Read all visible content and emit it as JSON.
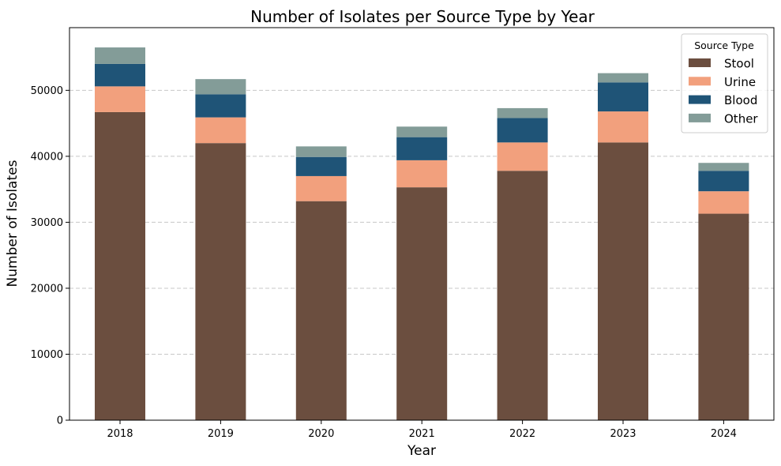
{
  "chart_data": {
    "type": "bar",
    "stacked": true,
    "title": "Number of Isolates per Source Type by Year",
    "xlabel": "Year",
    "ylabel": "Number of Isolates",
    "categories": [
      "2018",
      "2019",
      "2020",
      "2021",
      "2022",
      "2023",
      "2024"
    ],
    "series": [
      {
        "name": "Stool",
        "color": "#6b4e3f",
        "values": [
          46700,
          42000,
          33200,
          35300,
          37800,
          42100,
          31300
        ]
      },
      {
        "name": "Urine",
        "color": "#f2a07d",
        "values": [
          3900,
          3900,
          3800,
          4100,
          4300,
          4700,
          3400
        ]
      },
      {
        "name": "Blood",
        "color": "#1f5477",
        "values": [
          3400,
          3500,
          2900,
          3500,
          3700,
          4400,
          3100
        ]
      },
      {
        "name": "Other",
        "color": "#839c98",
        "values": [
          2500,
          2300,
          1600,
          1600,
          1500,
          1400,
          1200
        ]
      }
    ],
    "ylim": [
      0,
      59500
    ],
    "yticks": [
      0,
      10000,
      20000,
      30000,
      40000,
      50000
    ],
    "grid": "y-dashed",
    "legend": {
      "title": "Source Type",
      "placement": "top-right"
    }
  }
}
